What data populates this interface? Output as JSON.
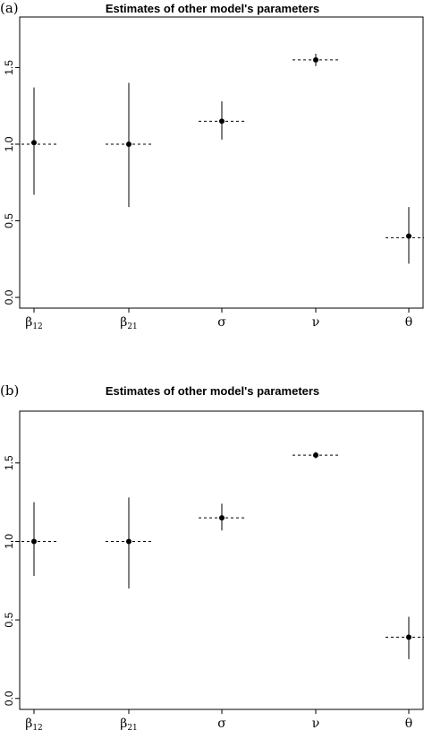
{
  "chart_data": [
    {
      "panel": "(a)",
      "type": "scatter",
      "title": "Estimates of other model's parameters",
      "categories": [
        "β12",
        "β21",
        "σ",
        "ν",
        "θ"
      ],
      "tick_labels": [
        {
          "base": "β",
          "sub": "12"
        },
        {
          "base": "β",
          "sub": "21"
        },
        {
          "base": "σ",
          "sub": ""
        },
        {
          "base": "ν",
          "sub": ""
        },
        {
          "base": "θ",
          "sub": ""
        }
      ],
      "reference_values": [
        1.0,
        1.0,
        1.15,
        1.55,
        0.39
      ],
      "estimates": [
        1.01,
        1.0,
        1.15,
        1.55,
        0.4
      ],
      "lower": [
        0.67,
        0.59,
        1.03,
        1.51,
        0.22
      ],
      "upper": [
        1.37,
        1.4,
        1.28,
        1.59,
        0.59
      ],
      "yticks": [
        0.0,
        0.5,
        1.0,
        1.5
      ],
      "ytick_labels": [
        "0.0",
        "0.5",
        "1.0",
        "1.5"
      ],
      "ylim": [
        -0.07,
        1.83
      ]
    },
    {
      "panel": "(b)",
      "type": "scatter",
      "title": "Estimates of other model's parameters",
      "categories": [
        "β12",
        "β21",
        "σ",
        "ν",
        "θ"
      ],
      "tick_labels": [
        {
          "base": "β",
          "sub": "12"
        },
        {
          "base": "β",
          "sub": "21"
        },
        {
          "base": "σ",
          "sub": ""
        },
        {
          "base": "ν",
          "sub": ""
        },
        {
          "base": "θ",
          "sub": ""
        }
      ],
      "reference_values": [
        1.0,
        1.0,
        1.15,
        1.55,
        0.39
      ],
      "estimates": [
        1.0,
        1.0,
        1.15,
        1.55,
        0.39
      ],
      "lower": [
        0.78,
        0.7,
        1.07,
        1.53,
        0.25
      ],
      "upper": [
        1.25,
        1.28,
        1.24,
        1.57,
        0.52
      ],
      "yticks": [
        0.0,
        0.5,
        1.0,
        1.5
      ],
      "ytick_labels": [
        "0.0",
        "0.5",
        "1.0",
        "1.5"
      ],
      "ylim": [
        -0.07,
        1.83
      ]
    }
  ]
}
